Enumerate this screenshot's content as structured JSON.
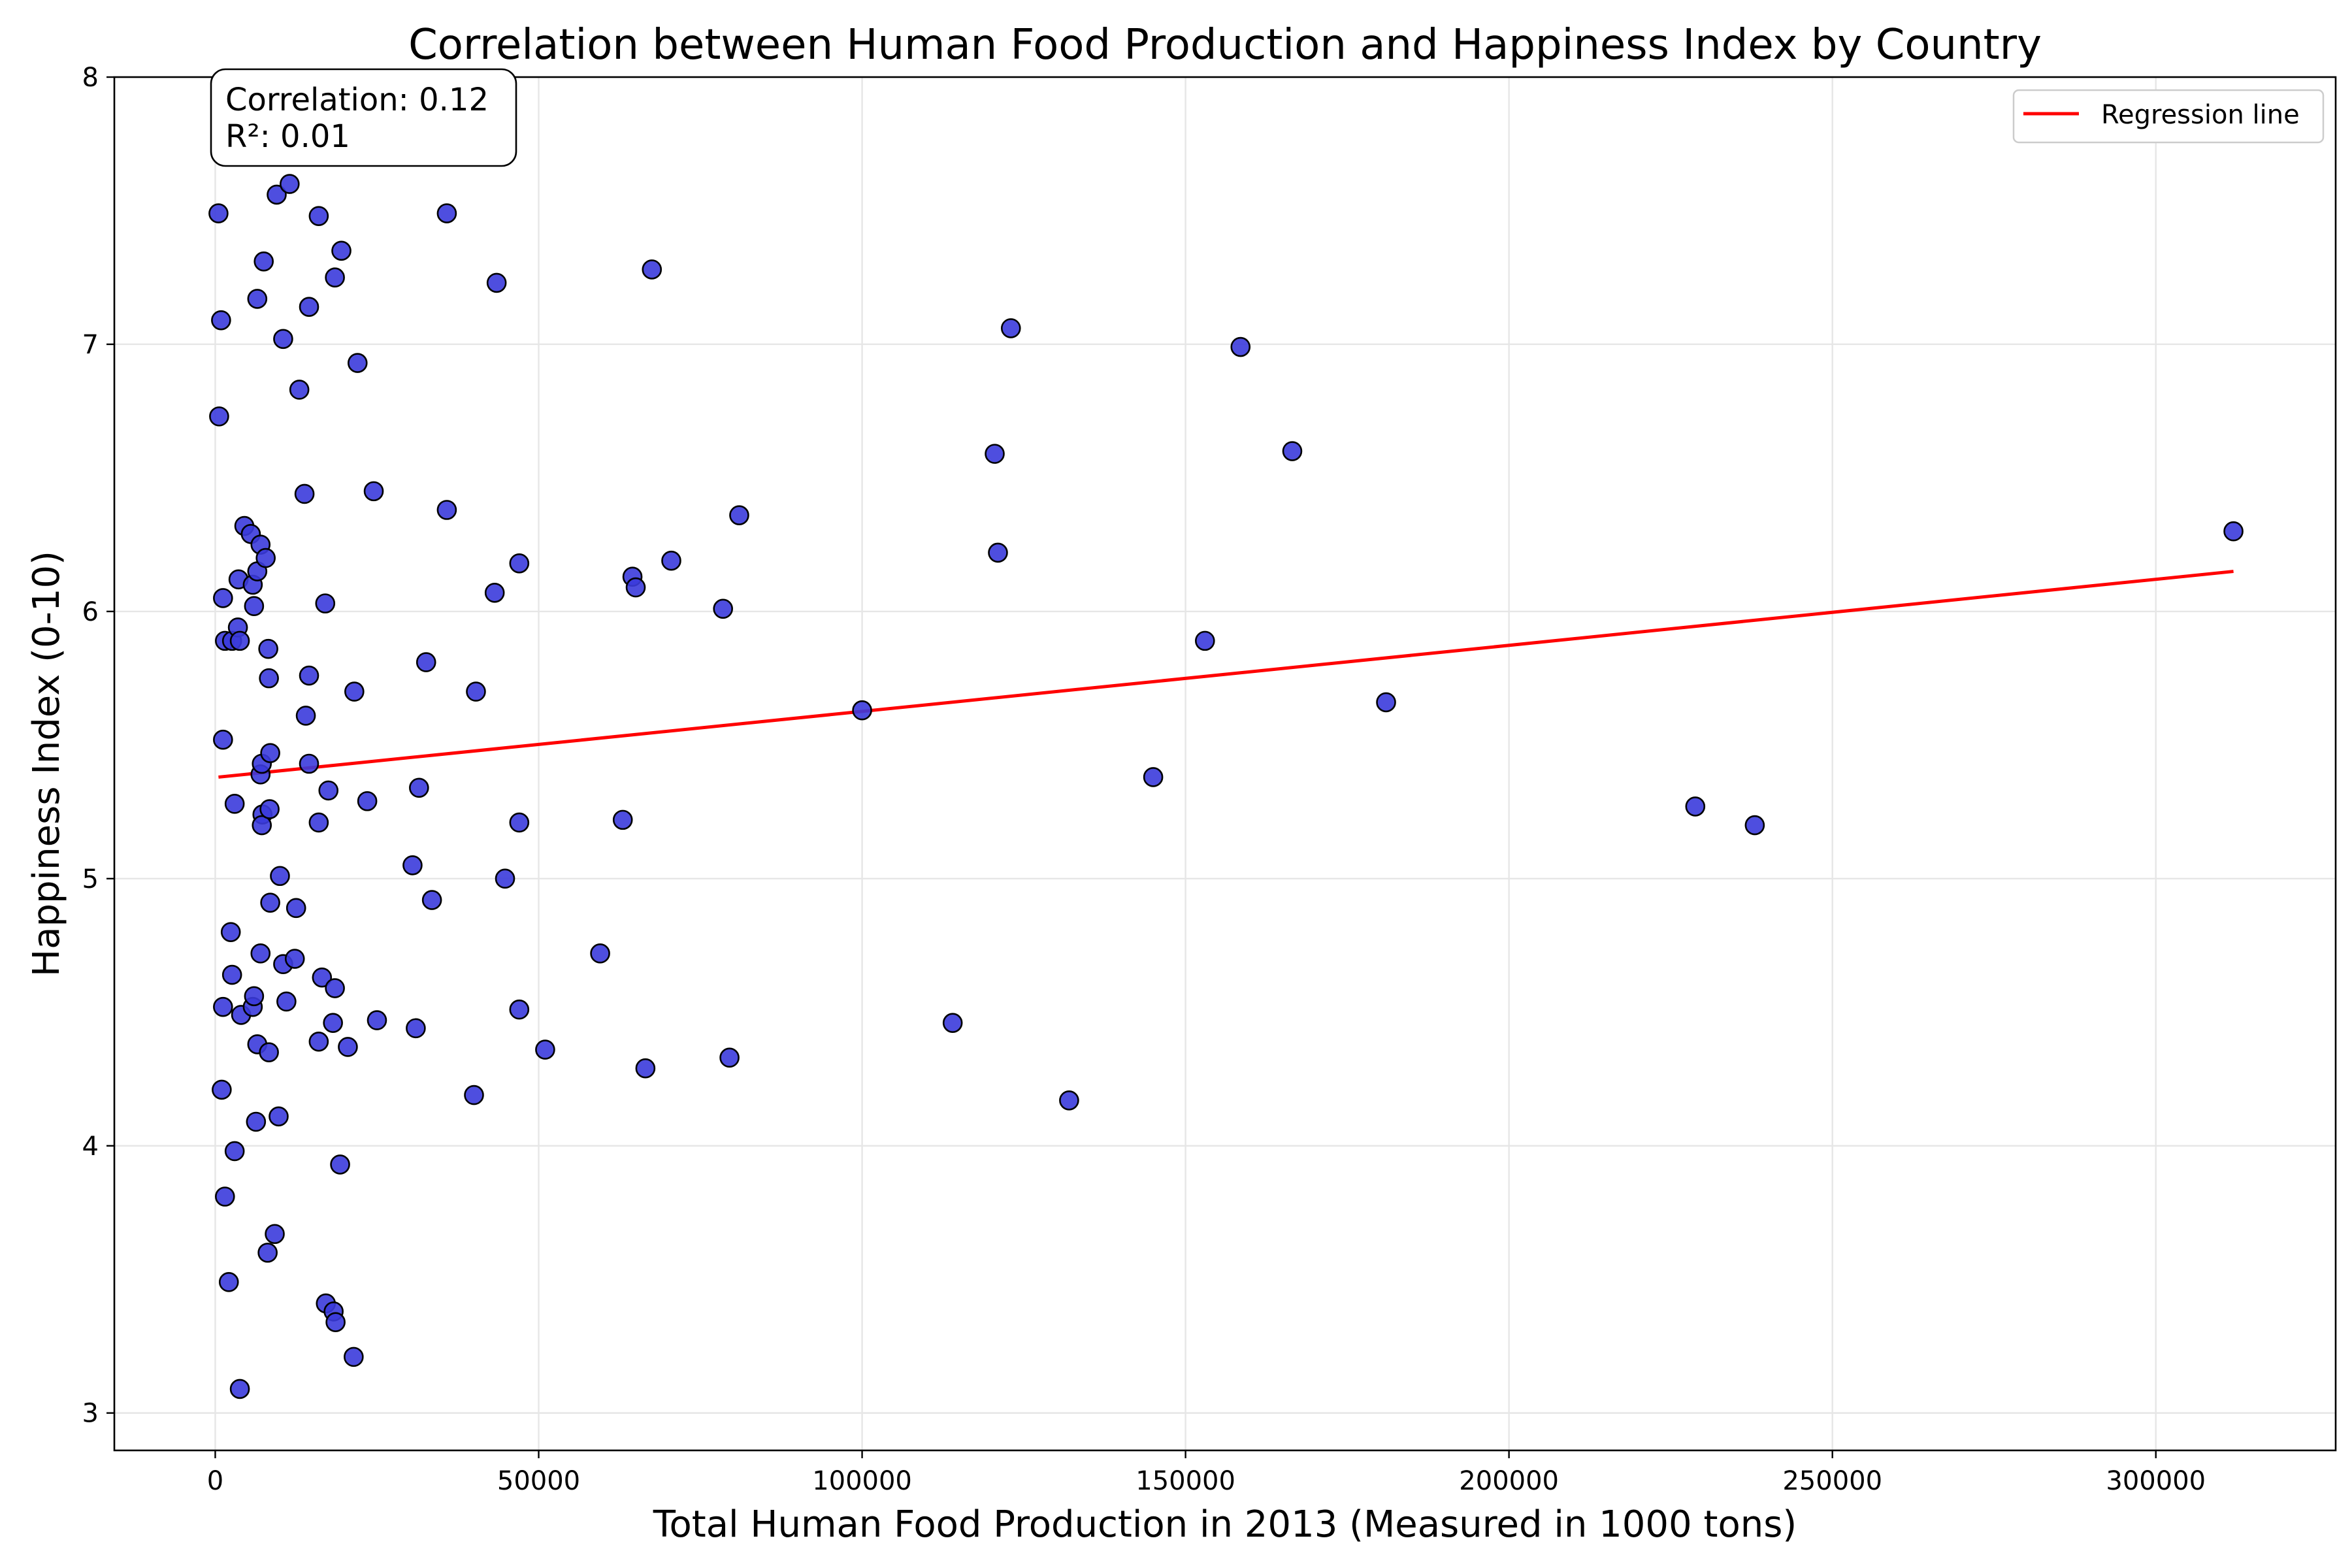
{
  "chart_data": {
    "type": "scatter",
    "title": "Correlation between Human Food Production and Happiness Index by Country",
    "xlabel": "Total Human Food Production in 2013 (Measured in 1000 tons)",
    "ylabel": "Happiness Index (0-10)",
    "xlim": [
      -15600,
      327800
    ],
    "ylim": [
      2.86,
      8.0
    ],
    "x_ticks": [
      0,
      50000,
      100000,
      150000,
      200000,
      250000,
      300000
    ],
    "y_ticks": [
      3,
      4,
      5,
      6,
      7,
      8
    ],
    "grid": true,
    "legend_position": "top-right",
    "annotation": {
      "correlation_text": "Correlation: 0.12",
      "r2_text": "R²: 0.01"
    },
    "colors": {
      "points_fill": "#3b3bdc",
      "points_edge": "#000000",
      "regression": "#ff0000",
      "grid": "#e6e6e6"
    },
    "series": [
      {
        "name": "Regression line",
        "type": "line",
        "points": [
          [
            500,
            5.38
          ],
          [
            312000,
            6.15
          ]
        ]
      },
      {
        "type": "scatter",
        "points": [
          [
            500,
            7.49
          ],
          [
            900,
            7.09
          ],
          [
            600,
            6.73
          ],
          [
            1200,
            6.05
          ],
          [
            1500,
            5.89
          ],
          [
            2600,
            5.89
          ],
          [
            3500,
            5.94
          ],
          [
            3800,
            5.89
          ],
          [
            3600,
            6.12
          ],
          [
            4500,
            6.32
          ],
          [
            5500,
            6.29
          ],
          [
            5800,
            6.1
          ],
          [
            6000,
            6.02
          ],
          [
            6500,
            6.15
          ],
          [
            7000,
            6.25
          ],
          [
            7800,
            6.2
          ],
          [
            1200,
            5.52
          ],
          [
            3000,
            5.28
          ],
          [
            7000,
            5.39
          ],
          [
            7200,
            5.43
          ],
          [
            8500,
            5.47
          ],
          [
            8200,
            5.86
          ],
          [
            8300,
            5.75
          ],
          [
            7300,
            5.24
          ],
          [
            7200,
            5.2
          ],
          [
            8400,
            5.26
          ],
          [
            6500,
            7.17
          ],
          [
            7500,
            7.31
          ],
          [
            9500,
            7.56
          ],
          [
            11500,
            7.6
          ],
          [
            12200,
            7.77
          ],
          [
            10500,
            7.02
          ],
          [
            13000,
            6.83
          ],
          [
            14500,
            7.14
          ],
          [
            16000,
            7.48
          ],
          [
            18500,
            7.25
          ],
          [
            19500,
            7.35
          ],
          [
            22000,
            6.93
          ],
          [
            13800,
            6.44
          ],
          [
            24500,
            6.45
          ],
          [
            17000,
            6.03
          ],
          [
            14500,
            5.76
          ],
          [
            14000,
            5.61
          ],
          [
            14500,
            5.43
          ],
          [
            17500,
            5.33
          ],
          [
            16000,
            5.21
          ],
          [
            21500,
            5.7
          ],
          [
            23500,
            5.29
          ],
          [
            2400,
            4.8
          ],
          [
            2600,
            4.64
          ],
          [
            1200,
            4.52
          ],
          [
            4000,
            4.49
          ],
          [
            5800,
            4.52
          ],
          [
            6000,
            4.56
          ],
          [
            7000,
            4.72
          ],
          [
            6500,
            4.38
          ],
          [
            8300,
            4.35
          ],
          [
            8500,
            4.91
          ],
          [
            10000,
            5.01
          ],
          [
            12500,
            4.89
          ],
          [
            10500,
            4.68
          ],
          [
            12300,
            4.7
          ],
          [
            11000,
            4.54
          ],
          [
            16500,
            4.63
          ],
          [
            18500,
            4.59
          ],
          [
            18200,
            4.46
          ],
          [
            16000,
            4.39
          ],
          [
            20500,
            4.37
          ],
          [
            25000,
            4.47
          ],
          [
            1000,
            4.21
          ],
          [
            3000,
            3.98
          ],
          [
            6300,
            4.09
          ],
          [
            9800,
            4.11
          ],
          [
            1500,
            3.81
          ],
          [
            2100,
            3.49
          ],
          [
            9200,
            3.67
          ],
          [
            8100,
            3.6
          ],
          [
            19300,
            3.93
          ],
          [
            17100,
            3.41
          ],
          [
            18300,
            3.38
          ],
          [
            18600,
            3.34
          ],
          [
            21400,
            3.21
          ],
          [
            3800,
            3.09
          ],
          [
            35800,
            7.49
          ],
          [
            43500,
            7.23
          ],
          [
            67500,
            7.28
          ],
          [
            35800,
            6.38
          ],
          [
            47000,
            6.18
          ],
          [
            43200,
            6.07
          ],
          [
            64500,
            6.13
          ],
          [
            65000,
            6.09
          ],
          [
            70500,
            6.19
          ],
          [
            81000,
            6.36
          ],
          [
            78500,
            6.01
          ],
          [
            32600,
            5.81
          ],
          [
            40300,
            5.7
          ],
          [
            31500,
            5.34
          ],
          [
            47000,
            5.21
          ],
          [
            63000,
            5.22
          ],
          [
            30500,
            5.05
          ],
          [
            44800,
            5.0
          ],
          [
            33500,
            4.92
          ],
          [
            59500,
            4.72
          ],
          [
            47000,
            4.51
          ],
          [
            31000,
            4.44
          ],
          [
            51000,
            4.36
          ],
          [
            66500,
            4.29
          ],
          [
            79500,
            4.33
          ],
          [
            40000,
            4.19
          ],
          [
            100000,
            5.63
          ],
          [
            114000,
            4.46
          ],
          [
            120500,
            6.59
          ],
          [
            121000,
            6.22
          ],
          [
            123000,
            7.06
          ],
          [
            132000,
            4.17
          ],
          [
            145000,
            5.38
          ],
          [
            153000,
            5.89
          ],
          [
            158500,
            6.99
          ],
          [
            166500,
            6.6
          ],
          [
            181000,
            5.66
          ],
          [
            228800,
            5.27
          ],
          [
            238000,
            5.2
          ],
          [
            312000,
            6.3
          ]
        ]
      }
    ]
  }
}
